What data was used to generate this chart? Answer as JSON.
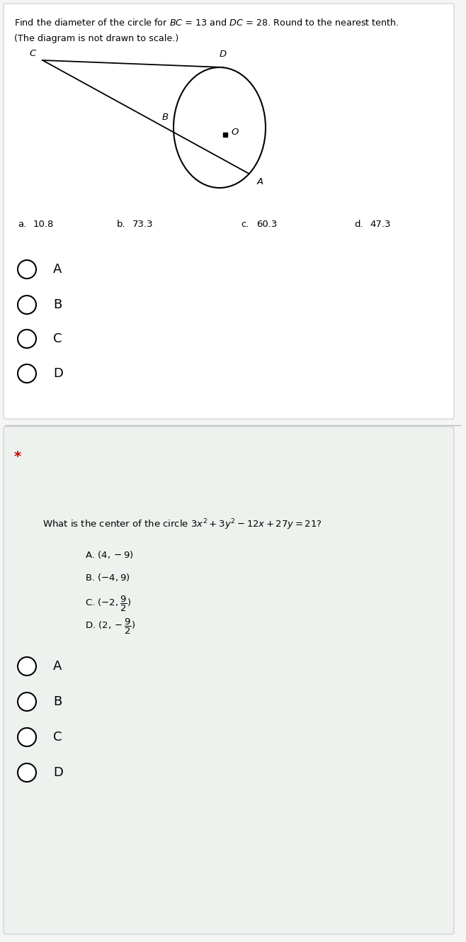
{
  "bg_color": "#f5f5f5",
  "section1_bg": "#ffffff",
  "section2_bg": "#eef2ee",
  "q1_line1": "Find the diameter of the circle for $BC$ = 13 and $DC$ = 28. Round to the nearest tenth.",
  "q1_line2": "(The diagram is not drawn to scale.)",
  "q1_answers": [
    {
      "label": "a.",
      "value": "10.8"
    },
    {
      "label": "b.",
      "value": "73.3"
    },
    {
      "label": "c.",
      "value": "60.3"
    },
    {
      "label": "d.",
      "value": "47.3"
    }
  ],
  "q1_options": [
    "A",
    "B",
    "C",
    "D"
  ],
  "star_color": "#cc0000",
  "q2_line": "What is the center of the circle $3x^2 + 3y^2 - 12x + 27y = 21$?",
  "q2_answers": [
    "A. $(4, -9)$",
    "B. $(-4, 9)$",
    "C. $(-2, \\dfrac{9}{2})$",
    "D. $(2, -\\dfrac{9}{2})$"
  ],
  "q2_options": [
    "A",
    "B",
    "C",
    "D"
  ]
}
